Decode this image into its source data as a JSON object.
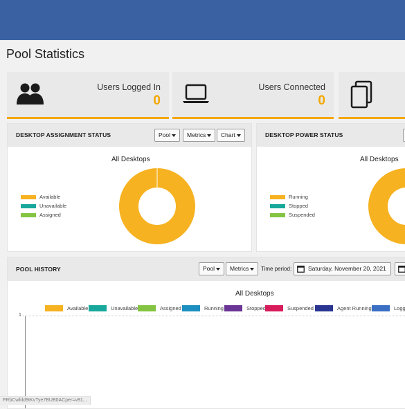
{
  "page": {
    "title": "Pool Statistics"
  },
  "cards": [
    {
      "label": "Users Logged In",
      "value": "0",
      "icon": "users-icon"
    },
    {
      "label": "Users Connected",
      "value": "0",
      "icon": "laptop-icon"
    },
    {
      "label": "",
      "value": "",
      "icon": "copy-icon"
    }
  ],
  "assignment": {
    "title": "DESKTOP ASSIGNMENT STATUS",
    "buttons": {
      "pool": "Pool",
      "metrics": "Metrics",
      "chart": "Chart"
    },
    "chart_title": "All Desktops",
    "legend": [
      "Available",
      "Unavailable",
      "Assigned"
    ]
  },
  "power": {
    "title": "DESKTOP POWER STATUS",
    "chart_title": "All Desktops",
    "legend": [
      "Running",
      "Stopped",
      "Suspended"
    ]
  },
  "history": {
    "title": "POOL HISTORY",
    "buttons": {
      "pool": "Pool",
      "metrics": "Metrics"
    },
    "time_period_label": "Time period:",
    "date": "Saturday, November 20, 2021",
    "chart_title": "All Desktops",
    "legend": [
      "Available",
      "Unavailable",
      "Assigned",
      "Running",
      "Stopped",
      "Suspended",
      "Agent Running",
      "Logge"
    ],
    "y_tick": "1"
  },
  "colors": {
    "topbar": "#3a62a2",
    "accent": "#f3a700",
    "available": "#f6b221",
    "unavailable": "#17a89b",
    "assigned": "#84c442",
    "running": "#f6b221",
    "stopped": "#17a89b",
    "suspended": "#84c442",
    "hist_available": "#f6b221",
    "hist_unavailable": "#17a89b",
    "hist_assigned": "#84c442",
    "hist_running": "#1c8fc0",
    "hist_stopped": "#6a3596",
    "hist_suspended": "#d81b5a",
    "hist_agent_running": "#2a3591",
    "hist_logged": "#3a6fc4"
  },
  "chart_data": [
    {
      "type": "pie",
      "title": "All Desktops",
      "categories": [
        "Available",
        "Unavailable",
        "Assigned"
      ],
      "values": [
        1,
        0,
        0
      ]
    },
    {
      "type": "pie",
      "title": "All Desktops",
      "categories": [
        "Running",
        "Stopped",
        "Suspended"
      ],
      "values": [
        1,
        0,
        0
      ]
    },
    {
      "type": "line",
      "title": "All Desktops",
      "series": [
        {
          "name": "Available",
          "values": []
        },
        {
          "name": "Unavailable",
          "values": []
        },
        {
          "name": "Assigned",
          "values": []
        },
        {
          "name": "Running",
          "values": []
        },
        {
          "name": "Stopped",
          "values": []
        },
        {
          "name": "Suspended",
          "values": []
        },
        {
          "name": "Agent Running",
          "values": []
        },
        {
          "name": "Logge",
          "values": []
        }
      ],
      "y_ticks": [
        "1"
      ]
    }
  ],
  "status_bar": {
    "url": "FRbCwfdd9tKvTye7BUB0ACper=v81..."
  }
}
